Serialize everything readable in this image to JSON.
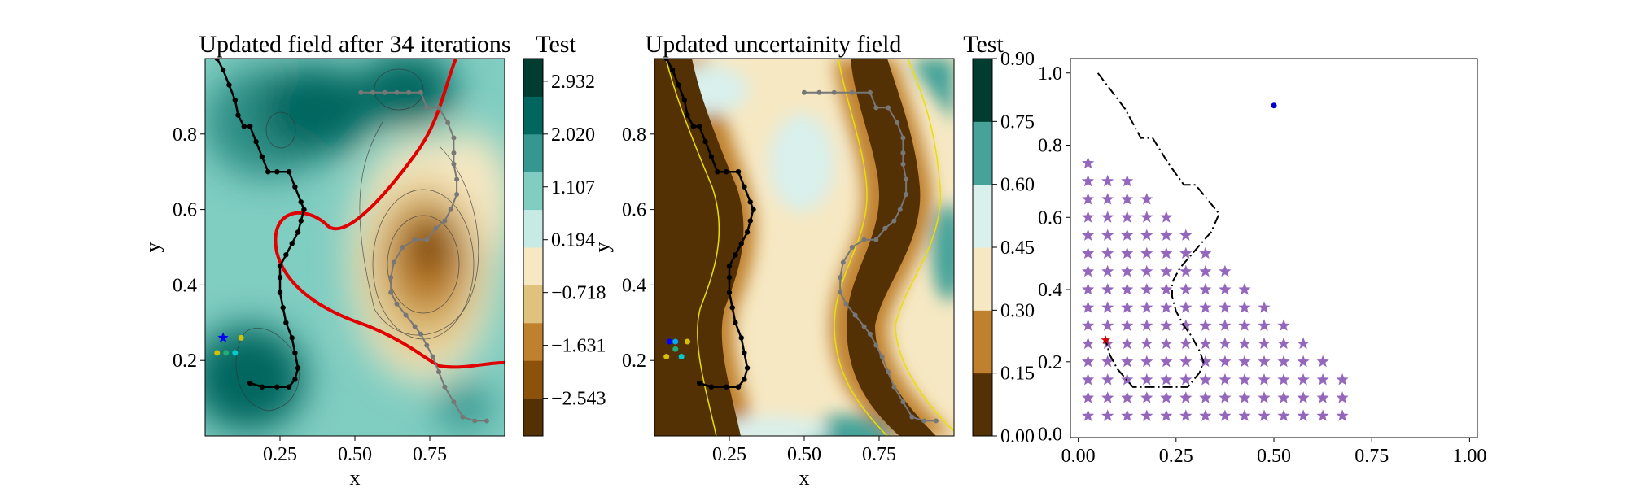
{
  "chart_data": [
    {
      "type": "contour",
      "title": "Updated field after 34 iterations",
      "xlabel": "x",
      "ylabel": "y",
      "xlim": [
        0.0,
        1.0
      ],
      "ylim": [
        0.0,
        1.0
      ],
      "xticks": [
        "0.25",
        "0.50",
        "0.75"
      ],
      "yticks": [
        "0.2",
        "0.4",
        "0.6",
        "0.8"
      ],
      "colorbar_title": "Test",
      "colorbar_ticks": [
        "−2.543",
        "−1.631",
        "−0.718",
        "0.194",
        "1.107",
        "2.020",
        "2.932"
      ],
      "colormap": [
        "#543005",
        "#8c510a",
        "#bf812d",
        "#dfc27d",
        "#f6e8c3",
        "#c7eae5",
        "#80cdc1",
        "#35978f",
        "#01665e",
        "#003c30"
      ],
      "boundary_color": "#e00000",
      "path_points": [
        [
          0.04,
          1.0
        ],
        [
          0.06,
          0.97
        ],
        [
          0.08,
          0.93
        ],
        [
          0.1,
          0.89
        ],
        [
          0.11,
          0.85
        ],
        [
          0.13,
          0.82
        ],
        [
          0.15,
          0.82
        ],
        [
          0.17,
          0.78
        ],
        [
          0.19,
          0.74
        ],
        [
          0.21,
          0.7
        ],
        [
          0.24,
          0.7
        ],
        [
          0.28,
          0.7
        ],
        [
          0.3,
          0.66
        ],
        [
          0.32,
          0.62
        ],
        [
          0.33,
          0.6
        ],
        [
          0.32,
          0.57
        ],
        [
          0.31,
          0.54
        ],
        [
          0.29,
          0.51
        ],
        [
          0.27,
          0.48
        ],
        [
          0.25,
          0.45
        ],
        [
          0.25,
          0.42
        ],
        [
          0.25,
          0.38
        ],
        [
          0.26,
          0.34
        ],
        [
          0.27,
          0.3
        ],
        [
          0.29,
          0.26
        ],
        [
          0.3,
          0.22
        ],
        [
          0.31,
          0.18
        ],
        [
          0.3,
          0.15
        ],
        [
          0.28,
          0.13
        ],
        [
          0.24,
          0.13
        ],
        [
          0.19,
          0.13
        ],
        [
          0.15,
          0.14
        ]
      ],
      "grey_path_points": [
        [
          0.52,
          0.91
        ],
        [
          0.56,
          0.91
        ],
        [
          0.6,
          0.91
        ],
        [
          0.64,
          0.91
        ],
        [
          0.68,
          0.91
        ],
        [
          0.72,
          0.91
        ],
        [
          0.74,
          0.87
        ],
        [
          0.78,
          0.87
        ],
        [
          0.81,
          0.83
        ],
        [
          0.83,
          0.79
        ],
        [
          0.83,
          0.75
        ],
        [
          0.83,
          0.72
        ],
        [
          0.84,
          0.68
        ],
        [
          0.84,
          0.64
        ],
        [
          0.82,
          0.6
        ],
        [
          0.8,
          0.57
        ],
        [
          0.77,
          0.55
        ],
        [
          0.74,
          0.52
        ],
        [
          0.7,
          0.52
        ],
        [
          0.66,
          0.5
        ],
        [
          0.63,
          0.46
        ],
        [
          0.62,
          0.42
        ],
        [
          0.62,
          0.38
        ],
        [
          0.64,
          0.35
        ],
        [
          0.67,
          0.32
        ],
        [
          0.7,
          0.29
        ],
        [
          0.72,
          0.27
        ],
        [
          0.74,
          0.24
        ],
        [
          0.76,
          0.21
        ],
        [
          0.78,
          0.17
        ],
        [
          0.8,
          0.13
        ],
        [
          0.83,
          0.09
        ],
        [
          0.86,
          0.05
        ],
        [
          0.9,
          0.04
        ],
        [
          0.94,
          0.04
        ]
      ],
      "markers": [
        {
          "x": 0.06,
          "y": 0.26,
          "color": "#0000ff",
          "symbol": "star"
        },
        {
          "x": 0.12,
          "y": 0.26,
          "color": "#d4c000"
        },
        {
          "x": 0.07,
          "y": 0.22,
          "color": "#22aa77"
        },
        {
          "x": 0.1,
          "y": 0.22,
          "color": "#00cccc"
        },
        {
          "x": 0.04,
          "y": 0.22,
          "color": "#d4c000"
        }
      ]
    },
    {
      "type": "contour",
      "title": "Updated uncertainity field",
      "xlabel": "x",
      "ylabel": "y",
      "xlim": [
        0.0,
        1.0
      ],
      "ylim": [
        0.0,
        1.0
      ],
      "xticks": [
        "0.25",
        "0.50",
        "0.75"
      ],
      "yticks": [
        "0.2",
        "0.4",
        "0.6",
        "0.8"
      ],
      "colorbar_title": "Test",
      "colorbar_ticks": [
        "0.00",
        "0.15",
        "0.30",
        "0.45",
        "0.60",
        "0.75",
        "0.90"
      ],
      "colormap": [
        "#543005",
        "#bf812d",
        "#f6e8c3",
        "#d9f0ec",
        "#45a39a",
        "#003c30"
      ],
      "path_points": [
        [
          0.04,
          1.0
        ],
        [
          0.06,
          0.97
        ],
        [
          0.08,
          0.93
        ],
        [
          0.1,
          0.89
        ],
        [
          0.11,
          0.85
        ],
        [
          0.13,
          0.82
        ],
        [
          0.15,
          0.82
        ],
        [
          0.17,
          0.78
        ],
        [
          0.19,
          0.74
        ],
        [
          0.21,
          0.7
        ],
        [
          0.24,
          0.7
        ],
        [
          0.28,
          0.7
        ],
        [
          0.3,
          0.66
        ],
        [
          0.32,
          0.62
        ],
        [
          0.33,
          0.6
        ],
        [
          0.32,
          0.57
        ],
        [
          0.31,
          0.54
        ],
        [
          0.29,
          0.51
        ],
        [
          0.27,
          0.48
        ],
        [
          0.25,
          0.45
        ],
        [
          0.25,
          0.42
        ],
        [
          0.25,
          0.38
        ],
        [
          0.26,
          0.34
        ],
        [
          0.27,
          0.3
        ],
        [
          0.29,
          0.26
        ],
        [
          0.3,
          0.22
        ],
        [
          0.31,
          0.18
        ],
        [
          0.3,
          0.15
        ],
        [
          0.28,
          0.13
        ],
        [
          0.24,
          0.13
        ],
        [
          0.19,
          0.13
        ],
        [
          0.15,
          0.14
        ]
      ],
      "grey_path_points": [
        [
          0.5,
          0.91
        ],
        [
          0.55,
          0.91
        ],
        [
          0.6,
          0.91
        ],
        [
          0.66,
          0.91
        ],
        [
          0.72,
          0.91
        ],
        [
          0.74,
          0.87
        ],
        [
          0.78,
          0.87
        ],
        [
          0.81,
          0.83
        ],
        [
          0.83,
          0.79
        ],
        [
          0.83,
          0.75
        ],
        [
          0.83,
          0.72
        ],
        [
          0.84,
          0.68
        ],
        [
          0.84,
          0.64
        ],
        [
          0.82,
          0.6
        ],
        [
          0.8,
          0.57
        ],
        [
          0.77,
          0.55
        ],
        [
          0.74,
          0.52
        ],
        [
          0.7,
          0.52
        ],
        [
          0.66,
          0.5
        ],
        [
          0.63,
          0.46
        ],
        [
          0.62,
          0.42
        ],
        [
          0.62,
          0.38
        ],
        [
          0.64,
          0.35
        ],
        [
          0.67,
          0.32
        ],
        [
          0.7,
          0.29
        ],
        [
          0.72,
          0.27
        ],
        [
          0.74,
          0.24
        ],
        [
          0.76,
          0.21
        ],
        [
          0.78,
          0.17
        ],
        [
          0.8,
          0.13
        ],
        [
          0.83,
          0.09
        ],
        [
          0.86,
          0.05
        ],
        [
          0.9,
          0.04
        ],
        [
          0.94,
          0.04
        ]
      ],
      "markers": [
        {
          "x": 0.05,
          "y": 0.25,
          "color": "#0000ff"
        },
        {
          "x": 0.07,
          "y": 0.25,
          "color": "#00aaff"
        },
        {
          "x": 0.11,
          "y": 0.25,
          "color": "#d4c000"
        },
        {
          "x": 0.07,
          "y": 0.23,
          "color": "#22aa77"
        },
        {
          "x": 0.09,
          "y": 0.21,
          "color": "#00cccc"
        },
        {
          "x": 0.04,
          "y": 0.21,
          "color": "#d4c000"
        }
      ]
    },
    {
      "type": "scatter",
      "title": "",
      "xlim": [
        -0.02,
        1.02
      ],
      "ylim": [
        -0.01,
        1.04
      ],
      "xticks": [
        0.0,
        0.25,
        0.5,
        0.75,
        1.0
      ],
      "xtick_labels": [
        "0.00",
        "0.25",
        "0.50",
        "0.75",
        "1.00"
      ],
      "yticks": [
        0.0,
        0.2,
        0.4,
        0.6,
        0.8,
        1.0
      ],
      "ytick_labels": [
        "0.0",
        "0.2",
        "0.4",
        "0.6",
        "0.8",
        "1.0"
      ],
      "star_color": "#9467bd",
      "star_grid": {
        "x_start": 0.025,
        "y_start": 0.05,
        "step": 0.05,
        "rows": 15,
        "row_counts": [
          14,
          14,
          14,
          13,
          12,
          11,
          10,
          9,
          8,
          7,
          6,
          5,
          4,
          3,
          1
        ]
      },
      "dashdot_path": [
        [
          0.05,
          1.0
        ],
        [
          0.12,
          0.9
        ],
        [
          0.16,
          0.82
        ],
        [
          0.19,
          0.82
        ],
        [
          0.23,
          0.75
        ],
        [
          0.27,
          0.69
        ],
        [
          0.3,
          0.69
        ],
        [
          0.36,
          0.61
        ],
        [
          0.34,
          0.56
        ],
        [
          0.3,
          0.51
        ],
        [
          0.26,
          0.46
        ],
        [
          0.24,
          0.42
        ],
        [
          0.24,
          0.38
        ],
        [
          0.25,
          0.34
        ],
        [
          0.27,
          0.3
        ],
        [
          0.29,
          0.27
        ],
        [
          0.31,
          0.23
        ],
        [
          0.32,
          0.2
        ],
        [
          0.31,
          0.17
        ],
        [
          0.28,
          0.13
        ],
        [
          0.24,
          0.13
        ],
        [
          0.19,
          0.13
        ],
        [
          0.14,
          0.13
        ],
        [
          0.1,
          0.18
        ],
        [
          0.08,
          0.22
        ],
        [
          0.07,
          0.26
        ]
      ],
      "blue_point": {
        "x": 0.5,
        "y": 0.91,
        "color": "#0000cc"
      },
      "red_point": {
        "x": 0.07,
        "y": 0.26,
        "color": "#cc0000"
      }
    }
  ]
}
